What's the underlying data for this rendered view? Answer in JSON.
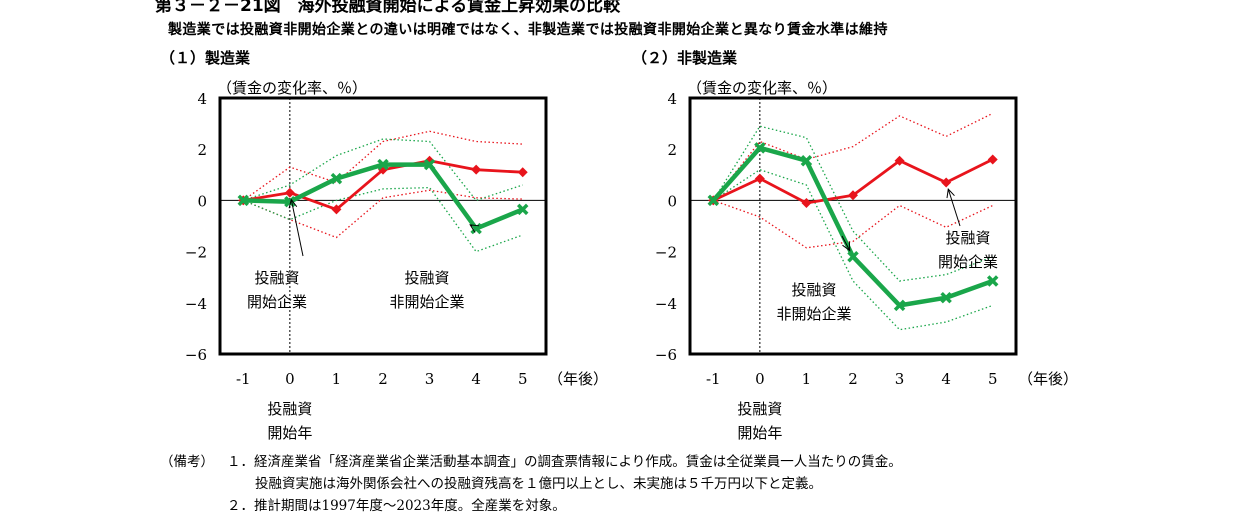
{
  "header": {
    "title": "第３－２－21図　海外投融資開始による賃金上昇効果の比較",
    "subtitle": "製造業では投融資非開始企業との違いは明確ではなく、非製造業では投融資非開始企業と異なり賃金水準は維持"
  },
  "chart_data": [
    {
      "type": "line",
      "panel_title": "（１）製造業",
      "ylabel": "（賃金の変化率、％）",
      "xlabel": "（年後）",
      "x_ticks": [
        "-1",
        "0",
        "1",
        "2",
        "3",
        "4",
        "5"
      ],
      "y_ticks": [
        "4",
        "2",
        "0",
        "−2",
        "−4",
        "−6"
      ],
      "ylim": [
        -6,
        4
      ],
      "event_label": [
        "投融資",
        "開始年"
      ],
      "series": [
        {
          "name": "投融資開始企業",
          "color": "#e8141c",
          "values": [
            0,
            0.3,
            -0.35,
            1.2,
            1.55,
            1.2,
            1.1
          ],
          "ci_upper": [
            0,
            1.3,
            0.7,
            2.3,
            2.7,
            2.3,
            2.2
          ],
          "ci_lower": [
            0,
            -0.75,
            -1.45,
            0.1,
            0.4,
            0.1,
            0.05
          ]
        },
        {
          "name": "投融資非開始企業",
          "color": "#1aa64a",
          "values": [
            0,
            -0.05,
            0.85,
            1.4,
            1.4,
            -1.1,
            -0.35
          ],
          "ci_upper": [
            0,
            0.6,
            1.75,
            2.4,
            2.3,
            0,
            0.6
          ],
          "ci_lower": [
            0,
            -0.75,
            0,
            0.45,
            0.5,
            -2.0,
            -1.35
          ]
        }
      ],
      "annotations": [
        {
          "lines": [
            "投融資",
            "開始企業"
          ],
          "target_series": 0
        },
        {
          "lines": [
            "投融資",
            "非開始企業"
          ],
          "target_series": 1
        }
      ]
    },
    {
      "type": "line",
      "panel_title": "（２）非製造業",
      "ylabel": "（賃金の変化率、％）",
      "xlabel": "（年後）",
      "x_ticks": [
        "-1",
        "0",
        "1",
        "2",
        "3",
        "4",
        "5"
      ],
      "y_ticks": [
        "4",
        "2",
        "0",
        "−2",
        "−4",
        "−6"
      ],
      "ylim": [
        -6,
        4
      ],
      "event_label": [
        "投融資",
        "開始年"
      ],
      "series": [
        {
          "name": "投融資開始企業",
          "color": "#e8141c",
          "values": [
            0,
            0.85,
            -0.1,
            0.2,
            1.55,
            0.7,
            1.6
          ],
          "ci_upper": [
            0,
            2.3,
            1.6,
            2.1,
            3.3,
            2.5,
            3.4
          ],
          "ci_lower": [
            0,
            -0.65,
            -1.85,
            -1.6,
            -0.2,
            -1.05,
            -0.2
          ]
        },
        {
          "name": "投融資非開始企業",
          "color": "#1aa64a",
          "values": [
            0,
            2.05,
            1.55,
            -2.2,
            -4.1,
            -3.8,
            -3.15
          ],
          "ci_upper": [
            0,
            2.9,
            2.45,
            -1.2,
            -3.15,
            -2.9,
            -2.2
          ],
          "ci_lower": [
            0,
            1.2,
            0.6,
            -3.15,
            -5.05,
            -4.75,
            -4.1
          ]
        }
      ],
      "annotations": [
        {
          "lines": [
            "投融資",
            "開始企業"
          ],
          "target_series": 0
        },
        {
          "lines": [
            "投融資",
            "非開始企業"
          ],
          "target_series": 1
        }
      ]
    }
  ],
  "notes": {
    "prefix": "（備考）",
    "lines": [
      "１．経済産業省「経済産業省企業活動基本調査」の調査票情報により作成。賃金は全従業員一人当たりの賃金。",
      "投融資実施は海外関係会社への投融資残高を１億円以上とし、未実施は５千万円以下と定義。",
      "２．推計期間は1997年度～2023年度。全産業を対象。"
    ]
  }
}
